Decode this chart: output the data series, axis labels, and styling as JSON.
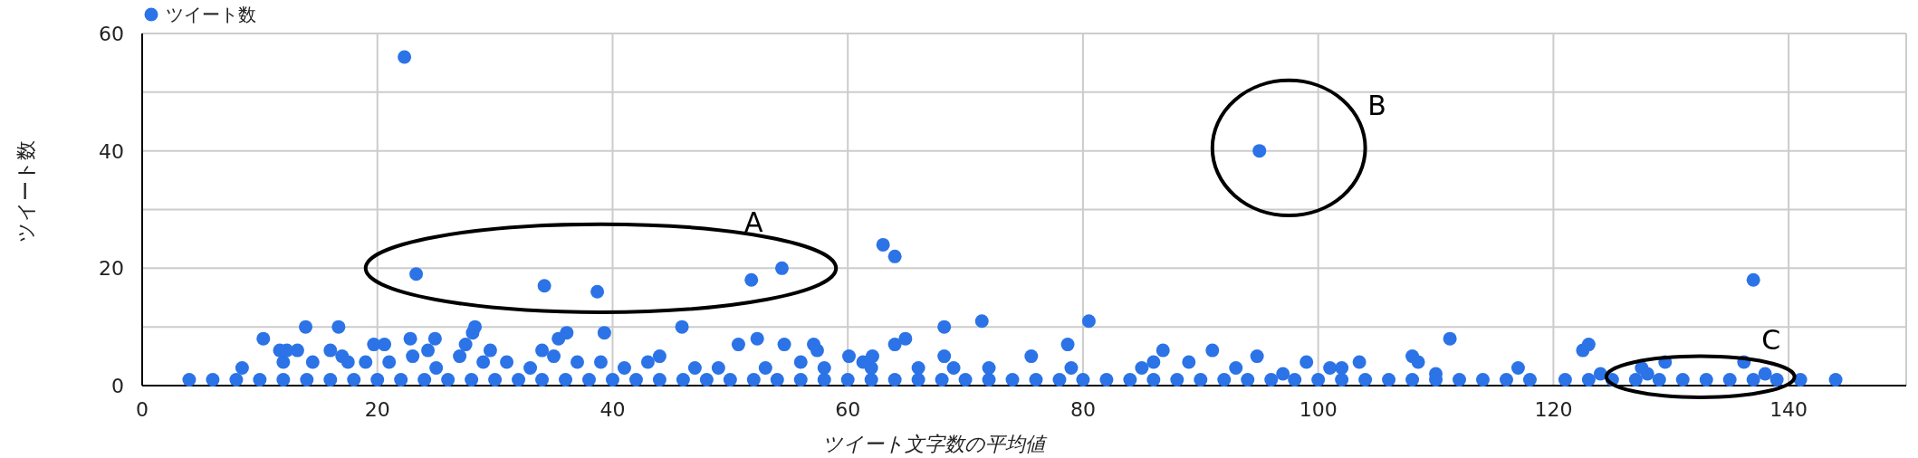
{
  "chart_data": {
    "type": "scatter",
    "xlabel": "ツイート文字数の平均値",
    "ylabel": "ツイート数",
    "legend": "top left",
    "grid": true,
    "marker": "circle",
    "xlim": [
      0,
      150
    ],
    "ylim": [
      0,
      60
    ],
    "xticks": [
      0,
      20,
      40,
      60,
      80,
      100,
      120,
      140,
      {
        "value": 150,
        "label": null
      }
    ],
    "yticks": [
      0,
      {
        "value": 10,
        "label": null
      },
      20,
      {
        "value": 30,
        "label": null
      },
      40,
      {
        "value": 50,
        "label": null
      },
      60
    ],
    "annotations": [
      "A",
      "B",
      "C"
    ],
    "series": [
      {
        "name": "ツイート数",
        "color": "#2b73e6",
        "x": [
          4,
          6,
          8,
          10,
          12,
          14,
          16,
          18,
          20,
          22,
          24,
          26,
          28,
          30,
          32,
          34,
          36,
          38,
          40,
          42,
          44,
          46,
          48,
          50,
          52,
          54,
          56,
          58,
          60,
          62,
          64,
          66,
          68,
          70,
          72,
          74,
          76,
          78,
          80,
          82,
          84,
          86,
          88,
          90,
          92,
          94,
          96,
          98,
          100,
          102,
          104,
          106,
          108,
          110,
          112,
          114,
          116,
          118,
          121,
          123,
          125,
          127,
          129,
          131,
          133,
          135,
          137,
          139,
          141,
          144,
          8.5,
          12,
          14.5,
          17,
          17.5,
          19,
          21,
          23,
          25,
          27,
          29,
          31,
          33,
          35,
          37,
          39,
          41,
          43,
          44,
          47,
          49,
          53,
          56,
          58,
          62,
          66,
          69,
          72,
          79,
          85,
          86,
          89,
          93,
          97,
          101,
          102,
          110,
          117,
          124,
          128,
          138,
          10.3,
          13.9,
          16.7,
          11.7,
          12.3,
          13.2,
          16,
          19.7,
          20.6,
          22.8,
          24.9,
          24.3,
          27.5,
          28.1,
          28.3,
          29.6,
          34,
          35.4,
          36.1,
          39.3,
          45.9,
          50.7,
          52.3,
          54.6,
          57.1,
          57.4,
          60.1,
          61.3,
          62.1,
          64,
          64.9,
          68.2,
          68.2,
          71.4,
          75.6,
          78.7,
          80.5,
          86.8,
          91,
          94.8,
          99,
          103.5,
          108,
          108.5,
          111.2,
          122.5,
          123,
          127.5,
          129.5,
          136.2,
          22.3,
          23.3,
          34.2,
          38.7,
          51.8,
          54.4,
          63,
          64,
          95,
          137
        ],
        "values": [
          1,
          1,
          1,
          1,
          1,
          1,
          1,
          1,
          1,
          1,
          1,
          1,
          1,
          1,
          1,
          1,
          1,
          1,
          1,
          1,
          1,
          1,
          1,
          1,
          1,
          1,
          1,
          1,
          1,
          1,
          1,
          1,
          1,
          1,
          1,
          1,
          1,
          1,
          1,
          1,
          1,
          1,
          1,
          1,
          1,
          1,
          1,
          1,
          1,
          1,
          1,
          1,
          1,
          1,
          1,
          1,
          1,
          1,
          1,
          1,
          1,
          1,
          1,
          1,
          1,
          1,
          1,
          1,
          1,
          1,
          3,
          4,
          4,
          5,
          4,
          4,
          4,
          5,
          3,
          5,
          4,
          4,
          3,
          5,
          4,
          4,
          3,
          4,
          5,
          3,
          3,
          3,
          4,
          3,
          3,
          3,
          3,
          3,
          3,
          3,
          4,
          4,
          3,
          2,
          3,
          3,
          2,
          3,
          2,
          2,
          2,
          8,
          10,
          10,
          6,
          6,
          6,
          6,
          7,
          7,
          8,
          8,
          6,
          7,
          9,
          10,
          6,
          6,
          8,
          9,
          9,
          10,
          7,
          8,
          7,
          7,
          6,
          5,
          4,
          5,
          7,
          8,
          10,
          5,
          11,
          5,
          7,
          11,
          6,
          6,
          5,
          4,
          4,
          5,
          4,
          8,
          6,
          7,
          3,
          4,
          4,
          56,
          19,
          17,
          16,
          18,
          20,
          24,
          22,
          40,
          18
        ]
      }
    ]
  }
}
